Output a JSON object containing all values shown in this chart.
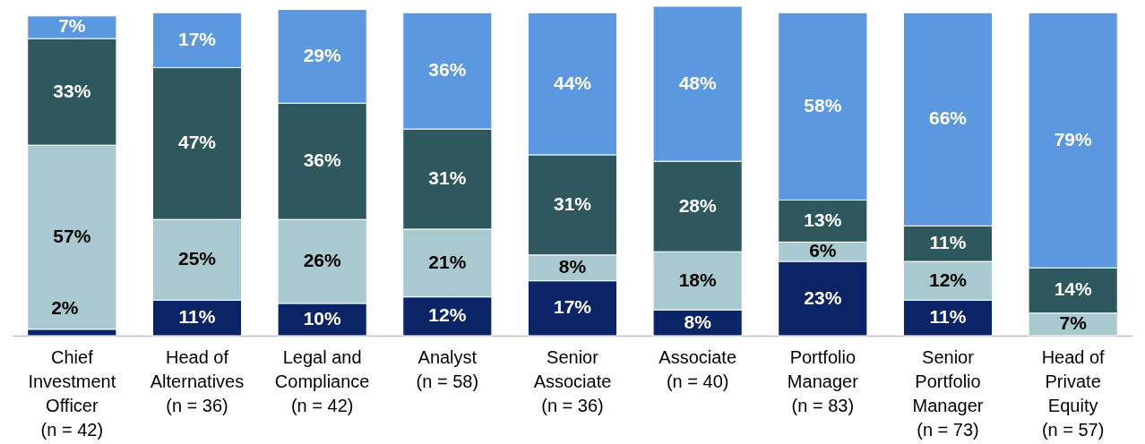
{
  "chart_data": {
    "type": "bar",
    "stacked": true,
    "categories": [
      "Chief\nInvestment\nOfficer\n(n = 42)",
      "Head of\nAlternatives\n(n = 36)",
      "Legal and\nCompliance\n(n = 42)",
      "Analyst\n(n = 58)",
      "Senior\nAssociate\n(n = 36)",
      "Associate\n(n = 40)",
      "Portfolio\nManager\n(n = 83)",
      "Senior\nPortfolio\nManager\n(n = 73)",
      "Head of\nPrivate\nEquity\n(n = 57)"
    ],
    "series": [
      {
        "color": "#0b2468",
        "values": [
          2,
          11,
          10,
          12,
          17,
          8,
          23,
          11,
          null
        ],
        "value_labels": [
          "2%",
          "11%",
          "10%",
          "12%",
          "17%",
          "8%",
          "23%",
          "11%",
          null
        ]
      },
      {
        "color": "#a8c9cf",
        "values": [
          57,
          25,
          26,
          21,
          8,
          18,
          6,
          12,
          7
        ],
        "value_labels": [
          "57%",
          "25%",
          "26%",
          "21%",
          "8%",
          "18%",
          "6%",
          "12%",
          "7%"
        ]
      },
      {
        "color": "#2f585e",
        "values": [
          33,
          47,
          36,
          31,
          31,
          28,
          13,
          11,
          14
        ],
        "value_labels": [
          "33%",
          "47%",
          "36%",
          "31%",
          "31%",
          "28%",
          "13%",
          "11%",
          "14%"
        ]
      },
      {
        "color": "#5b98df",
        "values": [
          7,
          17,
          29,
          36,
          44,
          48,
          58,
          66,
          79
        ],
        "value_labels": [
          "7%",
          "17%",
          "29%",
          "36%",
          "44%",
          "48%",
          "58%",
          "66%",
          "79%"
        ]
      }
    ]
  }
}
